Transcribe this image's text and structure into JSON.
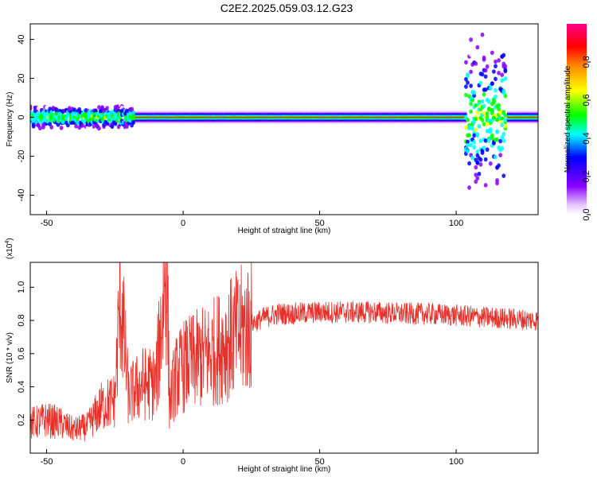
{
  "title": "C2E2.2025.059.03.12.G23",
  "chart_data": [
    {
      "type": "heatmap",
      "title": "C2E2.2025.059.03.12.G23",
      "xlabel": "Height of straight line (km)",
      "ylabel": "Frequency (Hz)",
      "xlim": [
        -56,
        130
      ],
      "ylim": [
        -50,
        48
      ],
      "xticks": [
        -50,
        0,
        50,
        100
      ],
      "yticks": [
        -40,
        -20,
        0,
        20,
        40
      ],
      "colorbar": {
        "label": "Normalized spectral amplitude",
        "range": [
          0.0,
          1.0
        ],
        "ticks": [
          "0.0",
          "0.2",
          "0.4",
          "0.6",
          "0.8"
        ],
        "colormap": [
          "#ff00aa",
          "#ff0000",
          "#ff8800",
          "#ffff00",
          "#00ff00",
          "#00ffff",
          "#0000ff",
          "#8800ff",
          "#ffffff"
        ]
      },
      "band": {
        "center_frequency_hz": 0,
        "segments": [
          {
            "x_range": [
              -56,
              -18
            ],
            "description": "scattered",
            "half_width_hz": 6
          },
          {
            "x_range": [
              -18,
              103
            ],
            "description": "narrow line",
            "half_width_hz": 2
          },
          {
            "x_range": [
              103,
              118
            ],
            "description": "broad scatter",
            "half_width_hz": 40
          },
          {
            "x_range": [
              118,
              130
            ],
            "description": "narrow line",
            "half_width_hz": 2
          }
        ]
      },
      "grid": false
    },
    {
      "type": "line",
      "xlabel": "Height of straight line (km)",
      "ylabel": "SNR (10 * v/v)",
      "y_scale_label": "(x10",
      "y_scale_exponent": "4",
      "xlim": [
        -56,
        130
      ],
      "ylim": [
        0,
        1.15
      ],
      "xticks": [
        -50,
        0,
        50,
        100
      ],
      "yticks": [
        "0.2",
        "0.4",
        "0.6",
        "0.8",
        "1.0"
      ],
      "series_color": "#e8302a",
      "series": [
        {
          "x": [
            -56,
            -50,
            -45,
            -40,
            -35,
            -30,
            -25,
            -23,
            -20,
            -15,
            -10,
            -6,
            -5,
            -3,
            0,
            5,
            10,
            15,
            20,
            25,
            30,
            35,
            40,
            50,
            60,
            70,
            80,
            90,
            100,
            110,
            120,
            130
          ],
          "y": [
            0.18,
            0.2,
            0.18,
            0.14,
            0.16,
            0.28,
            0.32,
            0.98,
            0.34,
            0.42,
            0.42,
            1.15,
            0.3,
            0.45,
            0.52,
            0.56,
            0.6,
            0.66,
            0.72,
            0.78,
            0.82,
            0.84,
            0.84,
            0.85,
            0.85,
            0.85,
            0.84,
            0.84,
            0.83,
            0.82,
            0.81,
            0.8
          ]
        }
      ],
      "grid": false
    }
  ]
}
